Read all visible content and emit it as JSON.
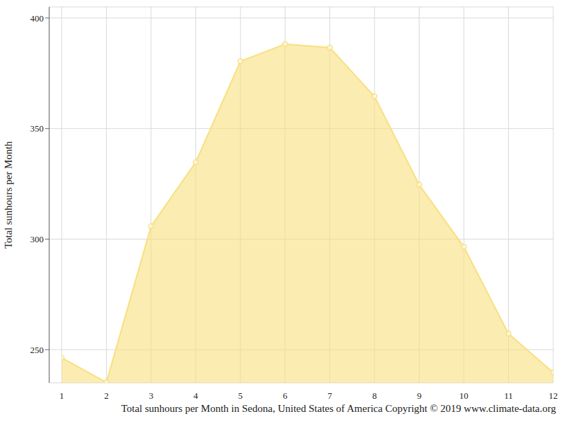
{
  "chart_data": {
    "type": "area",
    "title": "Total sunhours per Month in Sedona, United States of America Copyright © 2019 www.climate-data.org",
    "y_label": "Total sunhours per Month",
    "x": [
      1,
      2,
      3,
      4,
      5,
      6,
      7,
      8,
      9,
      10,
      11,
      12
    ],
    "values": [
      246.3,
      235.2,
      305.8,
      334.8,
      380.4,
      388.2,
      386.6,
      364.5,
      324.6,
      296.5,
      257.2,
      239.7
    ],
    "color": "#f8e07e",
    "marker": "circle",
    "xlim": [
      1,
      12
    ],
    "xticks": [
      1,
      2,
      3,
      4,
      5,
      6,
      7,
      8,
      9,
      10,
      11,
      12
    ],
    "ylim": [
      235,
      405
    ],
    "yticks": [
      250,
      300,
      350,
      400
    ],
    "grid": true
  }
}
